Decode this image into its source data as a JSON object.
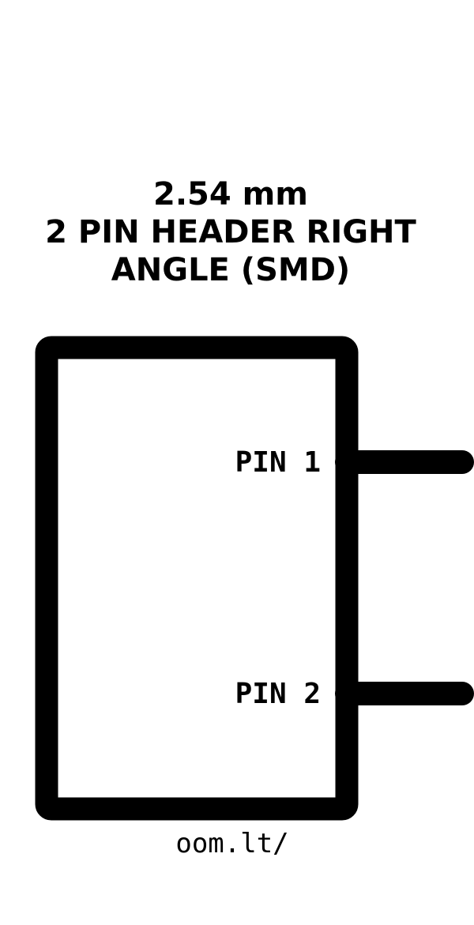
{
  "title": {
    "line1": "2.54 mm",
    "line2": "2 PIN HEADER RIGHT",
    "line3": "ANGLE (SMD)"
  },
  "pins": [
    {
      "label": "PIN 1"
    },
    {
      "label": "PIN 2"
    }
  ],
  "footer": {
    "text": "oom.lt/"
  },
  "colors": {
    "stroke": "#000000",
    "background": "#ffffff"
  }
}
